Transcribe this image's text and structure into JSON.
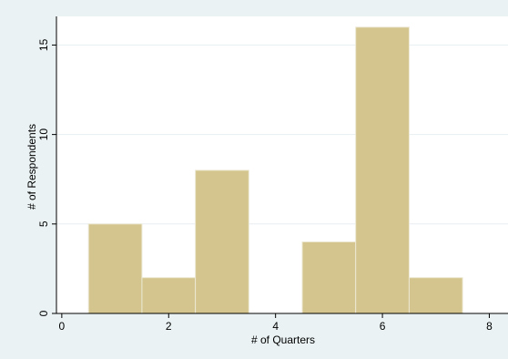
{
  "chart_data": {
    "type": "bar",
    "subtype": "histogram",
    "xlabel": "# of Quarters",
    "ylabel": "# of Respondents",
    "xlim": [
      -0.1,
      8.35
    ],
    "ylim": [
      0,
      16.6
    ],
    "xticks": [
      0,
      2,
      4,
      6,
      8
    ],
    "yticks": [
      0,
      5,
      10,
      15
    ],
    "grid": true,
    "legend": "none",
    "bins": [
      {
        "x0": 0.5,
        "x1": 1.5,
        "value": 5
      },
      {
        "x0": 1.5,
        "x1": 2.5,
        "value": 2
      },
      {
        "x0": 2.5,
        "x1": 3.5,
        "value": 8
      },
      {
        "x0": 4.5,
        "x1": 5.5,
        "value": 4
      },
      {
        "x0": 5.5,
        "x1": 6.5,
        "value": 16
      },
      {
        "x0": 6.5,
        "x1": 7.5,
        "value": 2
      }
    ],
    "colors": {
      "bar_fill": "#d3c58d",
      "bar_edge": "#ece8d3",
      "plot_bg": "#ffffff",
      "outer_bg": "#eaf2f3",
      "grid": "#e8eef0",
      "axis": "#000000"
    }
  }
}
